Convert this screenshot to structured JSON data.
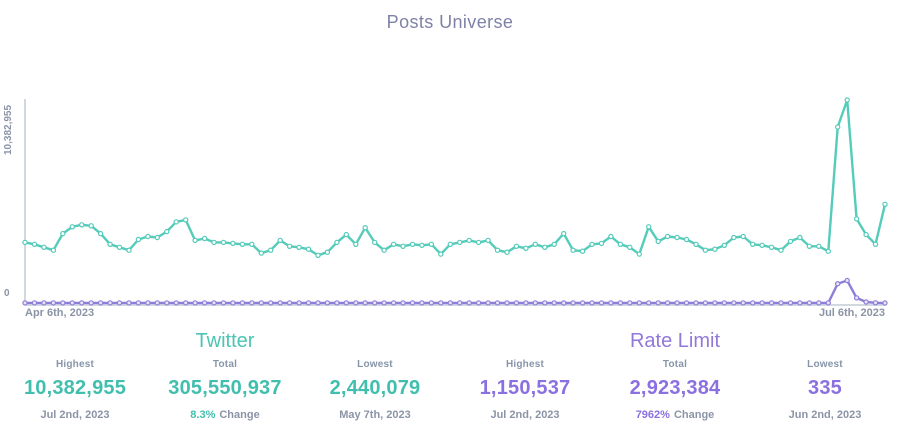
{
  "title": "Posts Universe",
  "axis": {
    "y_max_label": "10,382,955",
    "y_min_label": "0",
    "x_start_label": "Apr 6th, 2023",
    "x_end_label": "Jul 6th, 2023"
  },
  "colors": {
    "twitter_accent": "#41bfae",
    "rate_limit_accent": "#8a70e0",
    "muted_text": "#8b94a7",
    "title_text": "#7d82a6",
    "axis_line": "#c3cbd6"
  },
  "chart_data": {
    "type": "line",
    "title": "Posts Universe",
    "xlabel": "",
    "ylabel": "",
    "ylim": [
      0,
      10382955
    ],
    "grid": false,
    "legend_position": "none",
    "axis_color": "#c3cbd6",
    "x_tick_labels": [
      "Apr 6th, 2023",
      "Jul 6th, 2023"
    ],
    "series": [
      {
        "name": "Twitter",
        "color": "#55cbba",
        "dot_fill": "#ffffff",
        "values": [
          3100000,
          3000000,
          2850000,
          2700000,
          3550000,
          3900000,
          4000000,
          3950000,
          3550000,
          3000000,
          2850000,
          2700000,
          3250000,
          3400000,
          3350000,
          3650000,
          4150000,
          4250000,
          3200000,
          3300000,
          3100000,
          3100000,
          3050000,
          3000000,
          3000000,
          2550000,
          2700000,
          3200000,
          2900000,
          2850000,
          2750000,
          2440079,
          2600000,
          3100000,
          3500000,
          3000000,
          3850000,
          3100000,
          2700000,
          3000000,
          2900000,
          3000000,
          2950000,
          3000000,
          2500000,
          3000000,
          3100000,
          3200000,
          3100000,
          3200000,
          2700000,
          2600000,
          2900000,
          2800000,
          3000000,
          2850000,
          3000000,
          3550000,
          2700000,
          2650000,
          3000000,
          3050000,
          3400000,
          3000000,
          2850000,
          2500000,
          3900000,
          3150000,
          3400000,
          3350000,
          3250000,
          3000000,
          2700000,
          2750000,
          2950000,
          3350000,
          3400000,
          3000000,
          2950000,
          2850000,
          2700000,
          3150000,
          3350000,
          2900000,
          2900000,
          2650000,
          9000000,
          10382955,
          4300000,
          3500000,
          3000000,
          5050000
        ]
      },
      {
        "name": "Rate Limit",
        "color": "#8f7ed8",
        "dot_fill": "#e9e5f9",
        "values": [
          5200,
          4800,
          5100,
          6000,
          5500,
          4900,
          5300,
          6100,
          5800,
          5000,
          4700,
          5200,
          5600,
          6000,
          5400,
          4800,
          5100,
          5900,
          6200,
          5500,
          5000,
          4600,
          5300,
          5700,
          6100,
          5400,
          4900,
          5200,
          5800,
          6000,
          5500,
          5100,
          4700,
          5300,
          5900,
          6200,
          5600,
          5000,
          4800,
          5400,
          5700,
          6000,
          5300,
          4900,
          5200,
          5800,
          6100,
          5500,
          5000,
          4700,
          5400,
          5900,
          6200,
          5600,
          5100,
          4800,
          5300,
          335,
          5700,
          6000,
          5400,
          4900,
          5200,
          5800,
          6100,
          5500,
          5000,
          4700,
          5300,
          5900,
          6200,
          5600,
          5100,
          4800,
          5400,
          5700,
          6000,
          5300,
          4900,
          5200,
          5800,
          6000,
          5500,
          5100,
          4700,
          5300,
          985000,
          1150537,
          262000,
          51000,
          9000,
          2500
        ]
      }
    ]
  },
  "sections": [
    {
      "title": "Twitter",
      "stats": [
        {
          "label": "Highest",
          "value": "10,382,955",
          "sub_accent": "",
          "sub": "Jul 2nd, 2023"
        },
        {
          "label": "Total",
          "value": "305,550,937",
          "sub_accent": "8.3%",
          "sub": "Change"
        },
        {
          "label": "Lowest",
          "value": "2,440,079",
          "sub_accent": "",
          "sub": "May 7th, 2023"
        }
      ]
    },
    {
      "title": "Rate Limit",
      "stats": [
        {
          "label": "Highest",
          "value": "1,150,537",
          "sub_accent": "",
          "sub": "Jul 2nd, 2023"
        },
        {
          "label": "Total",
          "value": "2,923,384",
          "sub_accent": "7962%",
          "sub": "Change"
        },
        {
          "label": "Lowest",
          "value": "335",
          "sub_accent": "",
          "sub": "Jun 2nd, 2023"
        }
      ]
    }
  ]
}
